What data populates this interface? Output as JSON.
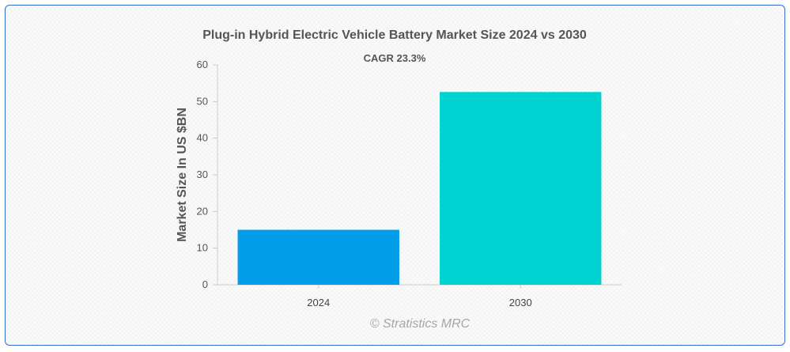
{
  "chart_data": {
    "type": "bar",
    "title": "Plug-in Hybrid Electric Vehicle Battery Market Size 2024 vs 2030",
    "annotation": "CAGR 23.3%",
    "xlabel": "",
    "ylabel": "Market Size In US $BN",
    "categories": [
      "2024",
      "2030"
    ],
    "values": [
      15.0,
      52.6
    ],
    "colors": [
      "#039ee9",
      "#00d4d2"
    ],
    "ylim": [
      0,
      60
    ],
    "yticks": [
      0,
      10,
      20,
      30,
      40,
      50,
      60
    ],
    "grid": false,
    "legend": "none"
  },
  "credit": "© Stratistics MRC"
}
